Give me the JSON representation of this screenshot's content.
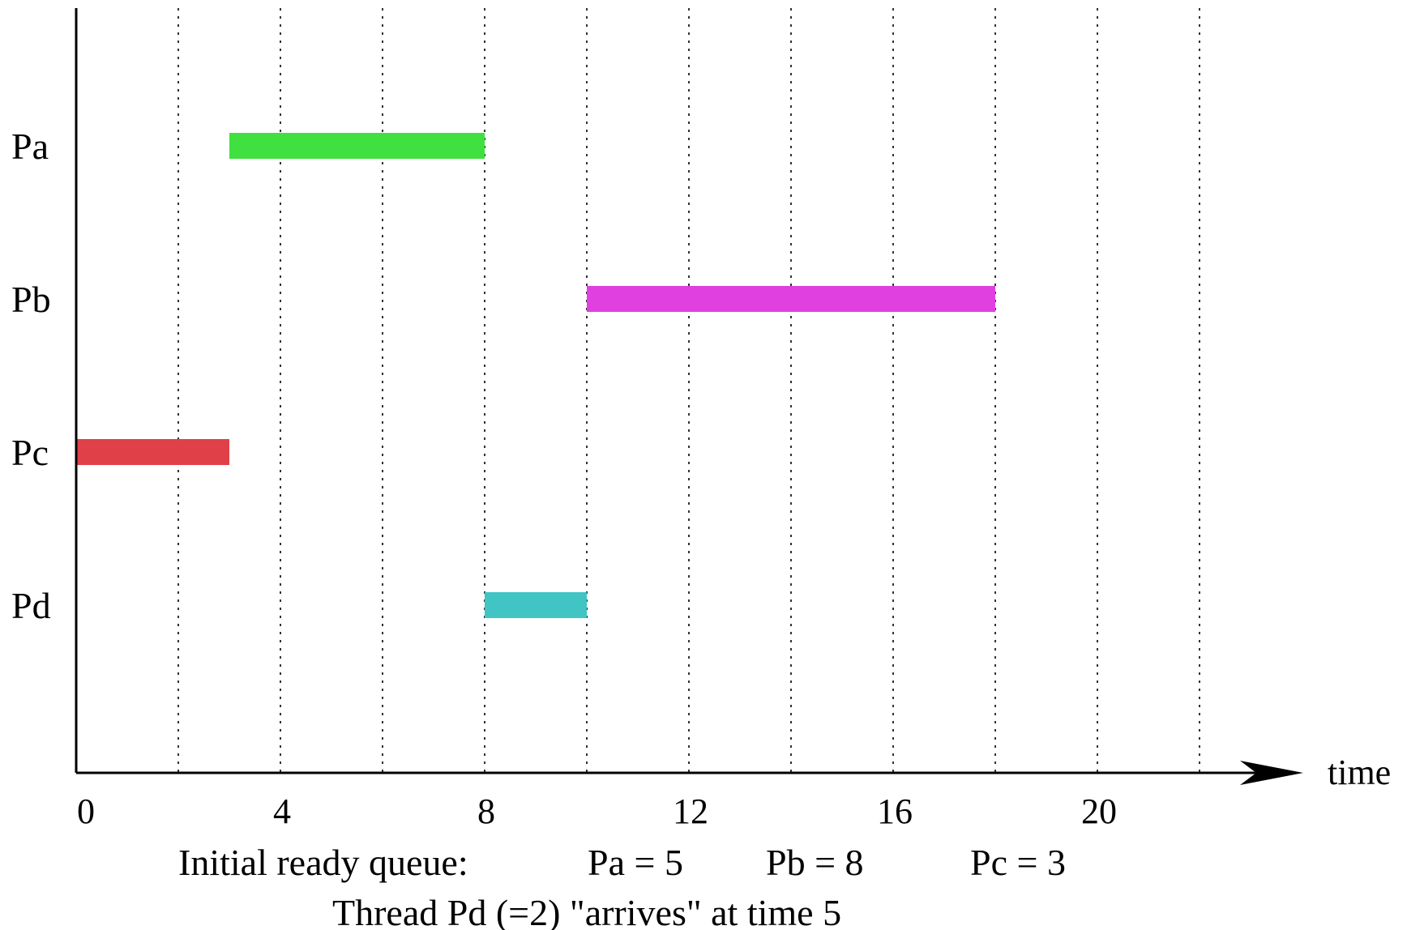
{
  "chart_data": {
    "type": "gantt",
    "xlabel": "time",
    "xlim": [
      0,
      24
    ],
    "x_ticks": [
      0,
      4,
      8,
      12,
      16,
      20
    ],
    "x_tick_labels": [
      "0",
      "4",
      "8",
      "12",
      "16",
      "20"
    ],
    "gridlines_x": [
      2,
      4,
      6,
      8,
      10,
      12,
      14,
      16,
      18,
      20,
      22
    ],
    "grid": "vertical dotted, every 2 time units",
    "rows": [
      "Pa",
      "Pb",
      "Pc",
      "Pd"
    ],
    "bars": [
      {
        "row": "Pa",
        "start": 3,
        "end": 8,
        "color": "#40e040"
      },
      {
        "row": "Pb",
        "start": 10,
        "end": 18,
        "color": "#e040e0"
      },
      {
        "row": "Pc",
        "start": 0,
        "end": 3,
        "color": "#e04048"
      },
      {
        "row": "Pd",
        "start": 8,
        "end": 10,
        "color": "#40c4c4"
      }
    ]
  },
  "caption": {
    "queue_label": "Initial ready queue:",
    "queue_items": [
      "Pa = 5",
      "Pb = 8",
      "Pc = 3"
    ],
    "arrival_note": "Thread Pd (=2) \"arrives\" at time 5"
  }
}
